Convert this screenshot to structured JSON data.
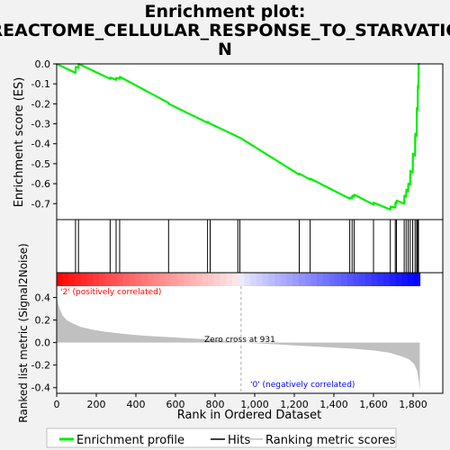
{
  "chart_data": {
    "type": "line",
    "title_lines": [
      "Enrichment plot:",
      "REACTOME_CELLULAR_RESPONSE_TO_STARVATIO",
      "N"
    ],
    "es_panel": {
      "ylabel": "Enrichment score (ES)",
      "ylim": [
        -0.78,
        0.0
      ],
      "yticks": [
        0.0,
        -0.1,
        -0.2,
        -0.3,
        -0.4,
        -0.5,
        -0.6,
        -0.7
      ],
      "ytick_labels": [
        "0.0",
        "-0.1",
        "-0.2",
        "-0.3",
        "-0.4",
        "-0.5",
        "-0.6",
        "-0.7"
      ],
      "series": [
        {
          "name": "Enrichment profile",
          "color": "#00ee00",
          "x": [
            0,
            95,
            96,
            110,
            111,
            270,
            271,
            300,
            301,
            318,
            319,
            565,
            566,
            762,
            763,
            775,
            776,
            915,
            916,
            925,
            926,
            1225,
            1226,
            1280,
            1281,
            1480,
            1481,
            1492,
            1493,
            1502,
            1503,
            1600,
            1601,
            1685,
            1686,
            1710,
            1711,
            1716,
            1717,
            1755,
            1756,
            1765,
            1766,
            1775,
            1776,
            1785,
            1786,
            1798,
            1799,
            1810,
            1811,
            1818,
            1819,
            1823,
            1824,
            1827,
            1828,
            1834
          ],
          "y": [
            0.0,
            -0.045,
            -0.015,
            -0.02,
            0.0,
            -0.075,
            -0.068,
            -0.08,
            -0.07,
            -0.075,
            -0.065,
            -0.195,
            -0.2,
            -0.295,
            -0.29,
            -0.3,
            -0.3,
            -0.365,
            -0.365,
            -0.37,
            -0.37,
            -0.555,
            -0.55,
            -0.58,
            -0.575,
            -0.675,
            -0.67,
            -0.672,
            -0.66,
            -0.665,
            -0.655,
            -0.705,
            -0.695,
            -0.73,
            -0.715,
            -0.72,
            -0.695,
            -0.7,
            -0.685,
            -0.7,
            -0.66,
            -0.665,
            -0.63,
            -0.64,
            -0.6,
            -0.605,
            -0.535,
            -0.545,
            -0.45,
            -0.46,
            -0.35,
            -0.36,
            -0.22,
            -0.23,
            -0.11,
            -0.12,
            0.0,
            0.0
          ]
        }
      ]
    },
    "hits": {
      "name": "Hits",
      "positions": [
        95,
        110,
        270,
        300,
        318,
        565,
        762,
        775,
        915,
        925,
        1225,
        1280,
        1480,
        1492,
        1502,
        1600,
        1685,
        1710,
        1716,
        1755,
        1765,
        1775,
        1785,
        1798,
        1810,
        1818,
        1823,
        1827
      ]
    },
    "rank_panel": {
      "ylabel": "Ranked list metric (Signal2Noise)",
      "xlabel": "Rank in Ordered Dataset",
      "ylim": [
        -0.45,
        0.5
      ],
      "yticks": [
        0.4,
        0.2,
        0.0,
        -0.2,
        -0.4
      ],
      "ytick_labels": [
        "0.4",
        "0.2",
        "0.0",
        "-0.2",
        "-0.4"
      ],
      "xlim": [
        0,
        1950
      ],
      "xticks": [
        0,
        200,
        400,
        600,
        800,
        1000,
        1200,
        1400,
        1600,
        1800
      ],
      "xtick_labels": [
        "0",
        "200",
        "400",
        "600",
        "800",
        "1,000",
        "1,200",
        "1,400",
        "1,600",
        "1,800"
      ],
      "series": [
        {
          "name": "Ranking metric scores",
          "color": "#c0c0c0",
          "x": [
            0,
            5,
            15,
            30,
            50,
            80,
            120,
            180,
            250,
            350,
            450,
            600,
            750,
            850,
            931,
            1050,
            1200,
            1350,
            1500,
            1600,
            1680,
            1740,
            1780,
            1805,
            1820,
            1828,
            1834
          ],
          "y": [
            0.42,
            0.36,
            0.3,
            0.24,
            0.2,
            0.17,
            0.14,
            0.115,
            0.095,
            0.075,
            0.06,
            0.045,
            0.03,
            0.015,
            0.0,
            -0.01,
            -0.025,
            -0.04,
            -0.055,
            -0.07,
            -0.09,
            -0.12,
            -0.15,
            -0.19,
            -0.25,
            -0.33,
            -0.42
          ]
        }
      ],
      "annotations": {
        "pos": "'2' (positively correlated)",
        "neg": "'0' (negatively correlated)",
        "zero_cross": "Zero cross at 931",
        "zero_cross_rank": 931
      }
    },
    "n_genes": 1834,
    "colors": {
      "es_line": "#00ee00",
      "hit_line": "#000000",
      "metric_fill": "#c0c0c0",
      "pos_text": "#ff0000",
      "neg_text": "#0000ff"
    },
    "legend": {
      "items": [
        "Enrichment profile",
        "Hits",
        "Ranking metric scores"
      ],
      "placement": "bottom"
    }
  }
}
